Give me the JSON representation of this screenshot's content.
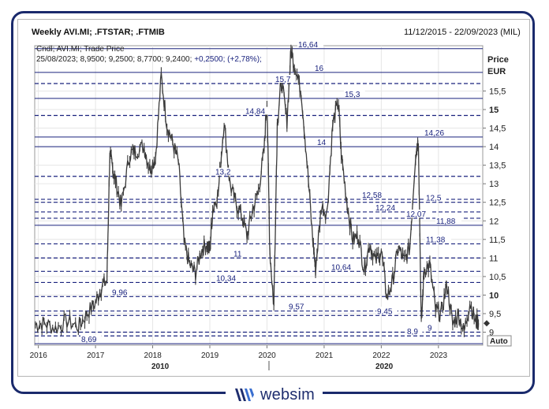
{
  "header": {
    "title": "Weekly AVI.MI; .FTSTAR; .FTMIB",
    "date_range": "11/12/2015 - 22/09/2023 (MIL)"
  },
  "legend": {
    "line1": "Cndl; AVI.MI; Trade Price",
    "line2_prefix": "25/08/2023; 8,9500; 9,2500; 8,7700; 9,2400;",
    "line2_change": "+0,2500; (+2,78%);"
  },
  "axis": {
    "title_line1": "Price",
    "title_line2": "EUR",
    "auto_label": "Auto",
    "bold_ticks": [
      "15",
      "10"
    ]
  },
  "brand": {
    "name": "websim"
  },
  "colors": {
    "price_line": "#3a3a3a",
    "level_line": "#1a237e",
    "level_text": "#1a237e",
    "frame": "#1a2a6c",
    "grid": "#e6e6e6"
  },
  "chart_data": {
    "type": "line",
    "x_labels": [
      "2016",
      "2017",
      "2018",
      "2019",
      "2020",
      "2021",
      "2022",
      "2023"
    ],
    "x_sublabels": [
      "2010",
      "2020"
    ],
    "ylim": [
      8.65,
      16.72
    ],
    "y_ticks": [
      "9",
      "9,5",
      "10",
      "10,5",
      "11",
      "11,5",
      "12",
      "12,5",
      "13",
      "13,5",
      "14",
      "14,5",
      "15",
      "15,5"
    ],
    "last_value": 9.24,
    "levels": [
      {
        "value": 16.64,
        "label": "16,64",
        "style": "solid"
      },
      {
        "value": 16,
        "label": "16",
        "style": "solid"
      },
      {
        "value": 15.7,
        "label": "15,7",
        "style": "dashed"
      },
      {
        "value": 15.3,
        "label": "15,3",
        "style": "solid"
      },
      {
        "value": 14.84,
        "label": "14,84",
        "style": "dashed"
      },
      {
        "value": 14.26,
        "label": "14,26",
        "style": "solid"
      },
      {
        "value": 14,
        "label": "14",
        "style": "solid"
      },
      {
        "value": 13.2,
        "label": "13,2",
        "style": "dashed"
      },
      {
        "value": 12.58,
        "label": "12,58",
        "style": "dashed"
      },
      {
        "value": 12.5,
        "label": "12,5",
        "style": "dashed"
      },
      {
        "value": 12.24,
        "label": "12,24",
        "style": "dashed"
      },
      {
        "value": 12.07,
        "label": "12,07",
        "style": "dashed"
      },
      {
        "value": 11.88,
        "label": "11,88",
        "style": "solid"
      },
      {
        "value": 11.38,
        "label": "11,38",
        "style": "dashed"
      },
      {
        "value": 11,
        "label": "11",
        "style": "dashed"
      },
      {
        "value": 10.64,
        "label": "10,64",
        "style": "dashed"
      },
      {
        "value": 10.34,
        "label": "10,34",
        "style": "dashed"
      },
      {
        "value": 9.96,
        "label": "9,96",
        "style": "dashed"
      },
      {
        "value": 9.57,
        "label": "9,57",
        "style": "dashed"
      },
      {
        "value": 9.45,
        "label": "9,45",
        "style": "dashed"
      },
      {
        "value": 9,
        "label": "9",
        "style": "dashed"
      },
      {
        "value": 8.9,
        "label": "8,9",
        "style": "dashed"
      },
      {
        "value": 8.69,
        "label": "8,69",
        "style": "solid"
      }
    ],
    "series": [
      {
        "x": [
          2015.95,
          2016.1,
          2016.3,
          2016.5,
          2016.7,
          2016.85,
          2017.0,
          2017.1,
          2017.2,
          2017.25,
          2017.3,
          2017.35,
          2017.45,
          2017.6,
          2017.7,
          2017.85,
          2017.95,
          2018.05,
          2018.15,
          2018.25,
          2018.35,
          2018.45,
          2018.55,
          2018.65,
          2018.75,
          2018.85,
          2018.95,
          2019.0,
          2019.05,
          2019.15,
          2019.25,
          2019.35,
          2019.45,
          2019.55,
          2019.65,
          2019.75,
          2019.85,
          2019.95,
          2020.0,
          2020.05,
          2020.12,
          2020.18,
          2020.25,
          2020.35,
          2020.42,
          2020.5,
          2020.6,
          2020.7,
          2020.8,
          2020.85,
          2020.95,
          2021.05,
          2021.15,
          2021.25,
          2021.3,
          2021.4,
          2021.5,
          2021.6,
          2021.7,
          2021.8,
          2021.9,
          2022.0,
          2022.1,
          2022.2,
          2022.3,
          2022.4,
          2022.5,
          2022.6,
          2022.65,
          2022.7,
          2022.75,
          2022.85,
          2022.95,
          2023.05,
          2023.15,
          2023.25,
          2023.35,
          2023.45,
          2023.55,
          2023.65,
          2023.7
        ],
        "y": [
          9.2,
          9.25,
          9.1,
          9.3,
          9.15,
          9.5,
          9.8,
          10.2,
          10.4,
          13.8,
          13.4,
          13.1,
          12.4,
          13.8,
          13.9,
          14.0,
          13.4,
          13.7,
          15.9,
          14.6,
          14.1,
          13.6,
          11.4,
          10.8,
          10.6,
          11.2,
          11.4,
          11.2,
          12.3,
          12.8,
          14.7,
          13.0,
          12.5,
          12.2,
          11.6,
          12.3,
          12.8,
          13.9,
          15.3,
          11.2,
          9.7,
          14.6,
          15.8,
          14.7,
          16.6,
          16.1,
          15.5,
          13.6,
          11.5,
          10.7,
          12.4,
          12.2,
          14.6,
          15.2,
          13.8,
          12.5,
          11.5,
          11.6,
          10.7,
          11.4,
          10.9,
          11.2,
          9.9,
          10.4,
          11.3,
          10.9,
          11.3,
          13.8,
          14.2,
          9.2,
          10.7,
          10.8,
          9.6,
          9.5,
          10.3,
          9.2,
          9.5,
          9.0,
          9.8,
          9.3,
          9.24
        ]
      }
    ]
  }
}
